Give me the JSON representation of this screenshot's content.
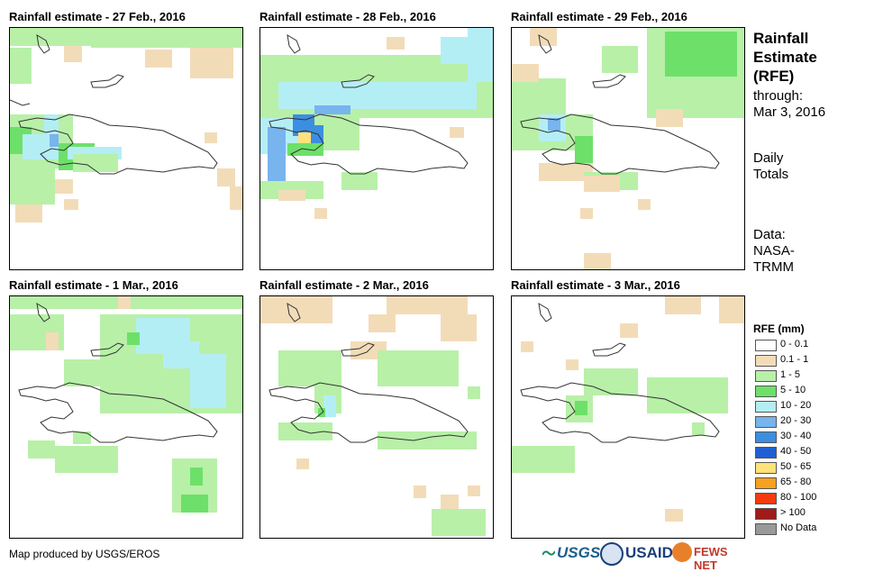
{
  "panels": [
    {
      "title": "Rainfall estimate - 27 Feb., 2016"
    },
    {
      "title": "Rainfall estimate - 28 Feb., 2016"
    },
    {
      "title": "Rainfall estimate - 29 Feb., 2016"
    },
    {
      "title": "Rainfall estimate - 1 Mar., 2016"
    },
    {
      "title": "Rainfall estimate - 2 Mar., 2016"
    },
    {
      "title": "Rainfall estimate - 3 Mar., 2016"
    }
  ],
  "side": {
    "title_line1": "Rainfall",
    "title_line2": "Estimate",
    "title_line3": "(RFE)",
    "through_label": "through:",
    "through_date": "Mar 3, 2016",
    "totals_line1": "Daily",
    "totals_line2": "Totals",
    "data_line1": "Data:",
    "data_line2": "NASA-",
    "data_line3": "TRMM"
  },
  "legend": {
    "title": "RFE (mm)",
    "items": [
      {
        "label": "0 - 0.1",
        "color": "#ffffff"
      },
      {
        "label": "0.1 - 1",
        "color": "#f2dcb8"
      },
      {
        "label": "1 - 5",
        "color": "#b8f0a8"
      },
      {
        "label": "5 - 10",
        "color": "#6de06a"
      },
      {
        "label": "10 - 20",
        "color": "#b4eef5"
      },
      {
        "label": "20 - 30",
        "color": "#78b4ee"
      },
      {
        "label": "30 - 40",
        "color": "#3c8ee0"
      },
      {
        "label": "40 - 50",
        "color": "#1f5fd1"
      },
      {
        "label": "50 - 65",
        "color": "#ffe27a"
      },
      {
        "label": "65 - 80",
        "color": "#f6a21e"
      },
      {
        "label": "80 - 100",
        "color": "#f63a10"
      },
      {
        "label": "> 100",
        "color": "#a11b1b"
      },
      {
        "label": "No Data",
        "color": "#999999"
      }
    ]
  },
  "footer": {
    "credit": "Map produced by USGS/EROS",
    "logo_usgs": "USGS",
    "logo_usaid": "USAID",
    "logo_fews": "FEWS NET"
  }
}
